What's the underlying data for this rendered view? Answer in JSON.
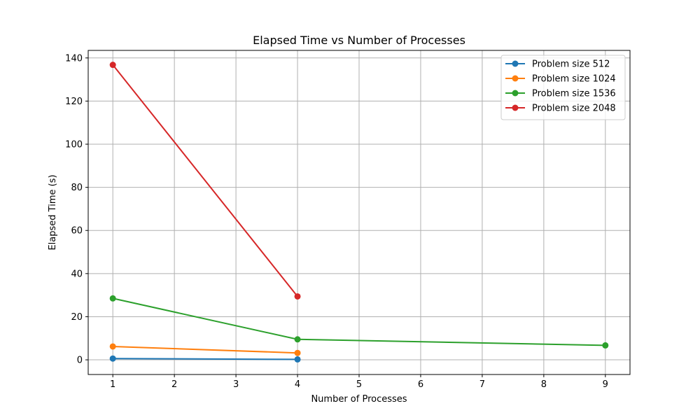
{
  "chart_data": {
    "type": "line",
    "title": "Elapsed Time vs Number of Processes",
    "xlabel": "Number of Processes",
    "ylabel": "Elapsed Time (s)",
    "xlim": [
      0.6,
      9.4
    ],
    "ylim": [
      -6.8,
      143.5
    ],
    "xticks": [
      1,
      2,
      3,
      4,
      5,
      6,
      7,
      8,
      9
    ],
    "yticks": [
      0,
      20,
      40,
      60,
      80,
      100,
      120,
      140
    ],
    "grid": true,
    "legend_position": "top-right",
    "marker": "circle",
    "series": [
      {
        "name": "Problem size 512",
        "color": "#1f77b4",
        "x": [
          1,
          4
        ],
        "y": [
          0.6,
          0.2
        ]
      },
      {
        "name": "Problem size 1024",
        "color": "#ff7f0e",
        "x": [
          1,
          4
        ],
        "y": [
          6.2,
          3.2
        ]
      },
      {
        "name": "Problem size 1536",
        "color": "#2ca02c",
        "x": [
          1,
          4,
          9
        ],
        "y": [
          28.5,
          9.5,
          6.7
        ]
      },
      {
        "name": "Problem size 2048",
        "color": "#d62728",
        "x": [
          1,
          4
        ],
        "y": [
          136.8,
          29.4
        ]
      }
    ]
  }
}
